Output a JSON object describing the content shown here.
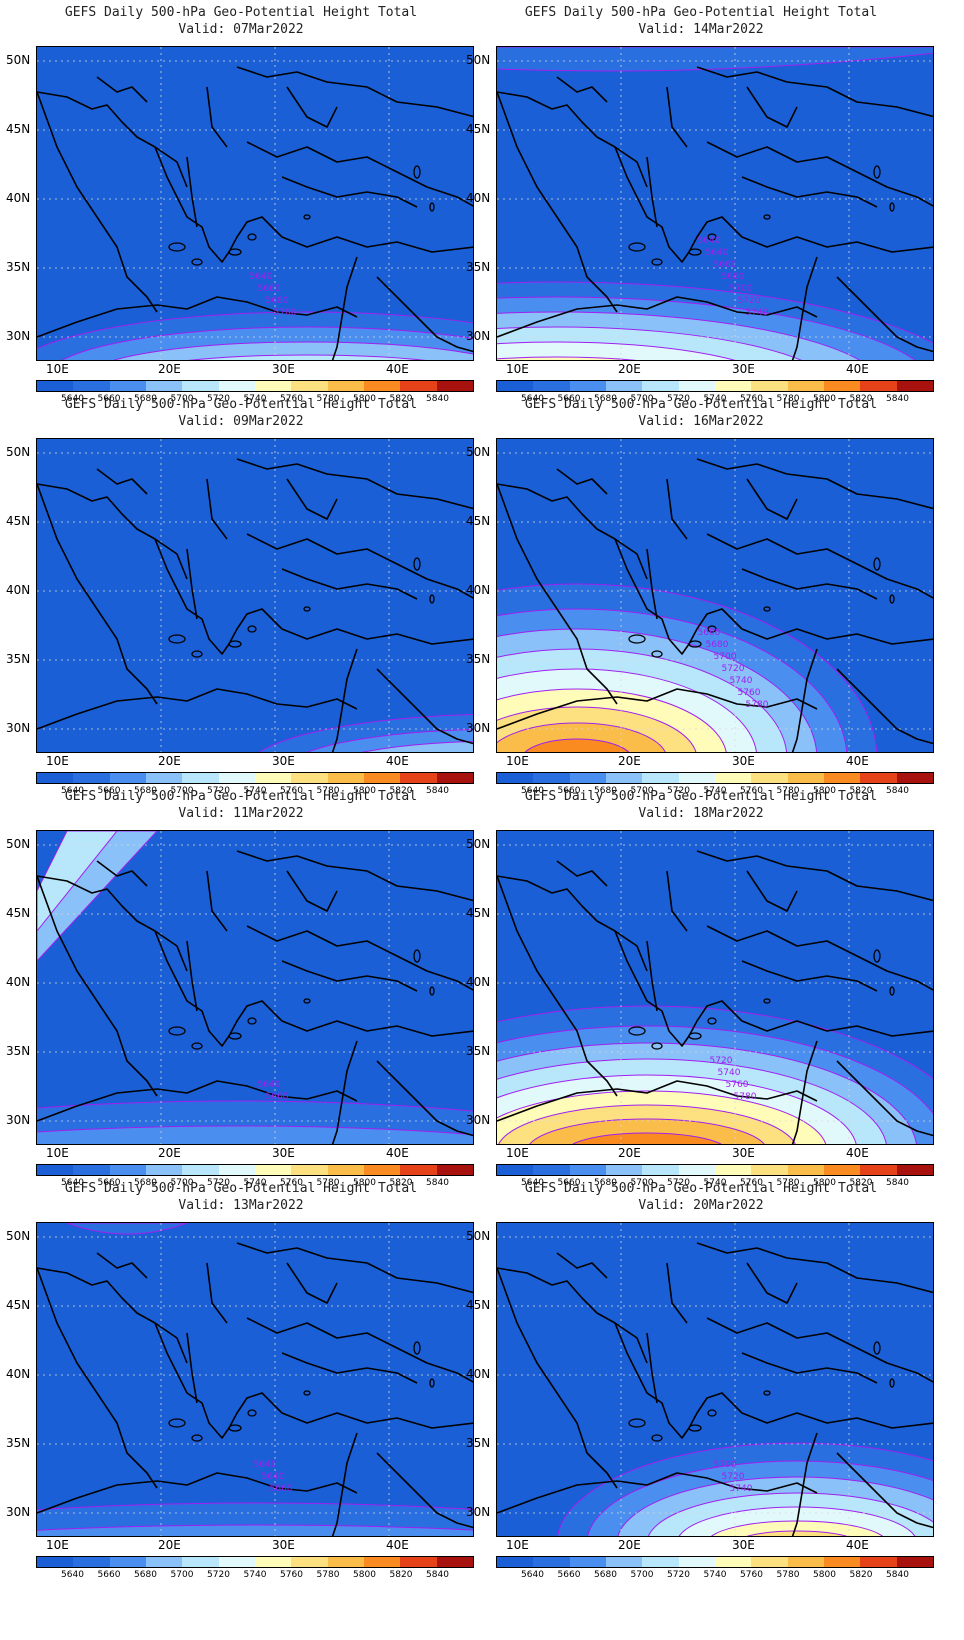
{
  "title": "GEFS Daily 500-hPa Geo-Potential Height Total",
  "valid_prefix": "Valid:",
  "lat_labels": [
    "50N",
    "45N",
    "40N",
    "35N",
    "30N"
  ],
  "lon_labels": [
    "10E",
    "20E",
    "30E",
    "40E"
  ],
  "colorbar": {
    "colors": [
      "#1a5fd6",
      "#2a6fe0",
      "#4a8ef0",
      "#8ac1f8",
      "#b8e6fb",
      "#e1f9fb",
      "#fffbb8",
      "#fde080",
      "#fbbd4a",
      "#f98b20",
      "#e6421a",
      "#a8120e"
    ],
    "labels": [
      "5640",
      "5660",
      "5680",
      "5700",
      "5720",
      "5740",
      "5760",
      "5780",
      "5800",
      "5820",
      "5840"
    ]
  },
  "contour_color": "#a020f0",
  "panels": [
    {
      "valid": "07Mar2022",
      "labels": [
        "5640",
        "5660",
        "5680",
        "5700"
      ]
    },
    {
      "valid": "14Mar2022",
      "labels": [
        "5640",
        "5640",
        "5660",
        "5680",
        "5700",
        "5720",
        "5740"
      ]
    },
    {
      "valid": "09Mar2022",
      "labels": []
    },
    {
      "valid": "16Mar2022",
      "labels": [
        "5660",
        "5680",
        "5700",
        "5720",
        "5740",
        "5760",
        "5780"
      ]
    },
    {
      "valid": "11Mar2022",
      "labels": [
        "5640",
        "5660"
      ]
    },
    {
      "valid": "18Mar2022",
      "labels": [
        "5720",
        "5740",
        "5760",
        "5780"
      ]
    },
    {
      "valid": "13Mar2022",
      "labels": [
        "5640",
        "5640",
        "5660"
      ]
    },
    {
      "valid": "20Mar2022",
      "labels": [
        "5700",
        "5720",
        "5740"
      ]
    }
  ]
}
